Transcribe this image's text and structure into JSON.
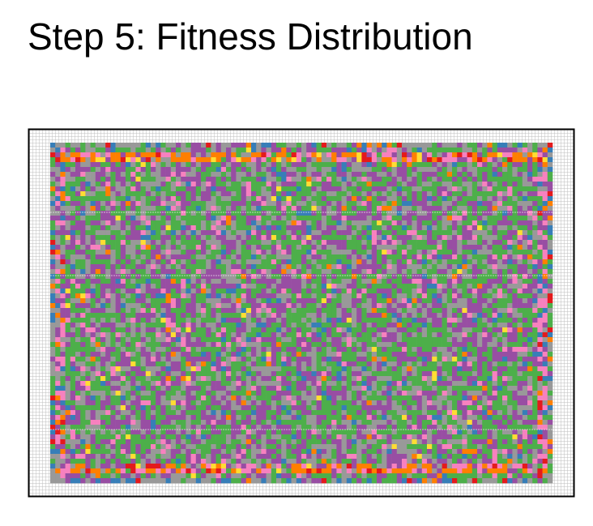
{
  "chart_data": {
    "type": "heatmap",
    "title": "Step 5: Fitness Distribution",
    "xlabel": "",
    "ylabel": "",
    "grid": true,
    "legend": "none",
    "columns": 100,
    "rows": 70,
    "palette": {
      "purple": "#984ea3",
      "green": "#4daf4a",
      "gray": "#999999",
      "blue": "#377eb8",
      "pink": "#f781bf",
      "orange": "#ff7f00",
      "red": "#e41a1c",
      "yellow": "#ffdd33",
      "frame": "#000000",
      "gridline": "#bdbdbd"
    }
  }
}
